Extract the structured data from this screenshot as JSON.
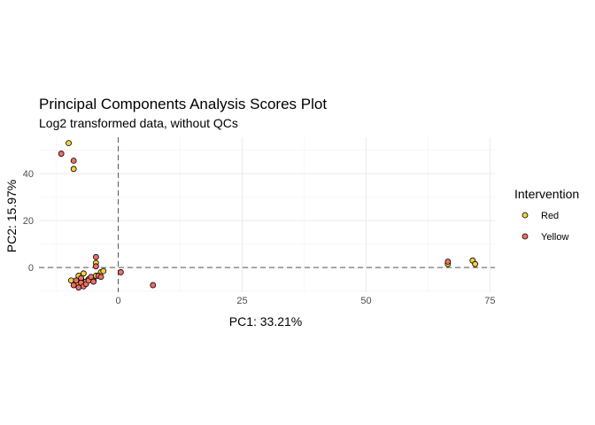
{
  "chart_data": {
    "type": "scatter",
    "title": "Principal Components Analysis Scores Plot",
    "subtitle": "Log2 transformed data, without QCs",
    "xlabel": "PC1: 33.21%",
    "ylabel": "PC2: 15.97%",
    "xlim": [
      -16,
      76
    ],
    "ylim": [
      -10.5,
      55.5
    ],
    "x_ticks": [
      0,
      25,
      50,
      75
    ],
    "y_ticks": [
      0,
      20,
      40
    ],
    "grid": true,
    "reference_lines": {
      "x": 0,
      "y": 0
    },
    "legend": {
      "title": "Intervention",
      "placement": "right"
    },
    "series": [
      {
        "name": "Red",
        "color": "#F4D03F",
        "points": [
          [
            -10,
            53
          ],
          [
            -9,
            42
          ],
          [
            -9.5,
            -5.5
          ],
          [
            -8.5,
            -6
          ],
          [
            -8,
            -3.5
          ],
          [
            -8,
            -7
          ],
          [
            -7.5,
            -5
          ],
          [
            -7,
            -2.5
          ],
          [
            -6.5,
            -6
          ],
          [
            -6,
            -5
          ],
          [
            -5,
            -5.5
          ],
          [
            -4.5,
            -3.5
          ],
          [
            -4.5,
            2
          ],
          [
            -3.5,
            -2
          ],
          [
            -3,
            -1.5
          ],
          [
            66.5,
            1.5
          ],
          [
            71.5,
            3
          ],
          [
            72,
            1.5
          ]
        ]
      },
      {
        "name": "Yellow",
        "color": "#EF6F64",
        "points": [
          [
            -11.5,
            48.5
          ],
          [
            -9,
            45.5
          ],
          [
            -9,
            -7.5
          ],
          [
            -8.5,
            -5.5
          ],
          [
            -8,
            -8.5
          ],
          [
            -7.5,
            -4.5
          ],
          [
            -7.5,
            -6.5
          ],
          [
            -7,
            -8
          ],
          [
            -6.5,
            -7
          ],
          [
            -6,
            -5.5
          ],
          [
            -5.5,
            -4
          ],
          [
            -5,
            -6
          ],
          [
            -4.5,
            0.5
          ],
          [
            -4.5,
            4.5
          ],
          [
            -4,
            -3.5
          ],
          [
            -3.5,
            -4
          ],
          [
            0.5,
            -2
          ],
          [
            7,
            -7.5
          ],
          [
            66.5,
            2.5
          ]
        ]
      }
    ]
  }
}
